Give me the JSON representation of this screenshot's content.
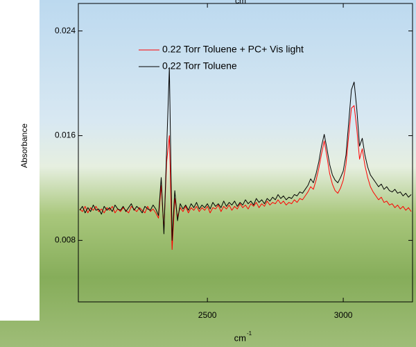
{
  "chart_data": {
    "type": "line",
    "top_axis_label": "cm",
    "x_label": "cm",
    "x_label_sup": "-1",
    "y_label": "Absorbance",
    "xlim": [
      2025,
      3255
    ],
    "xticks": [
      2500,
      3000
    ],
    "ylim": [
      0.0033,
      0.0261
    ],
    "yticks": [
      0.008,
      0.016,
      0.024
    ],
    "legend": "upper left",
    "x": [
      2030,
      2040,
      2050,
      2060,
      2070,
      2080,
      2090,
      2100,
      2110,
      2120,
      2130,
      2140,
      2150,
      2160,
      2170,
      2180,
      2190,
      2200,
      2210,
      2220,
      2230,
      2240,
      2250,
      2260,
      2270,
      2280,
      2290,
      2300,
      2310,
      2320,
      2330,
      2340,
      2350,
      2360,
      2370,
      2380,
      2390,
      2400,
      2410,
      2420,
      2430,
      2440,
      2450,
      2460,
      2470,
      2480,
      2490,
      2500,
      2510,
      2520,
      2530,
      2540,
      2550,
      2560,
      2570,
      2580,
      2590,
      2600,
      2610,
      2620,
      2630,
      2640,
      2650,
      2660,
      2670,
      2680,
      2690,
      2700,
      2710,
      2720,
      2730,
      2740,
      2750,
      2760,
      2770,
      2780,
      2790,
      2800,
      2810,
      2820,
      2830,
      2840,
      2850,
      2860,
      2870,
      2880,
      2890,
      2900,
      2910,
      2920,
      2930,
      2940,
      2950,
      2960,
      2970,
      2980,
      2990,
      3000,
      3010,
      3020,
      3030,
      3040,
      3050,
      3060,
      3070,
      3080,
      3090,
      3100,
      3110,
      3120,
      3130,
      3140,
      3150,
      3160,
      3170,
      3180,
      3190,
      3200,
      3210,
      3220,
      3230,
      3240,
      3250
    ],
    "series": [
      {
        "name": "0.22 Torr Toluene + PC+ Vis light",
        "color": "#ff0000",
        "values": [
          0.0104,
          0.0102,
          0.0106,
          0.0101,
          0.0105,
          0.0103,
          0.0106,
          0.0102,
          0.0104,
          0.0101,
          0.0105,
          0.0103,
          0.0106,
          0.0101,
          0.0104,
          0.0102,
          0.0105,
          0.0103,
          0.0101,
          0.0106,
          0.0104,
          0.0102,
          0.0105,
          0.0103,
          0.0101,
          0.0106,
          0.0102,
          0.0104,
          0.0101,
          0.0097,
          0.0122,
          0.0088,
          0.014,
          0.016,
          0.0073,
          0.0112,
          0.0098,
          0.0105,
          0.0102,
          0.0106,
          0.0101,
          0.0105,
          0.0103,
          0.0106,
          0.0102,
          0.0105,
          0.0103,
          0.0106,
          0.0101,
          0.0105,
          0.0104,
          0.0107,
          0.0102,
          0.0106,
          0.0104,
          0.0107,
          0.0103,
          0.0106,
          0.0104,
          0.0108,
          0.0105,
          0.0107,
          0.0104,
          0.0108,
          0.0106,
          0.0109,
          0.0105,
          0.0108,
          0.0106,
          0.011,
          0.0107,
          0.0109,
          0.0108,
          0.0111,
          0.0108,
          0.011,
          0.0107,
          0.0109,
          0.0108,
          0.0111,
          0.0109,
          0.0112,
          0.0111,
          0.0114,
          0.0117,
          0.0121,
          0.0119,
          0.0126,
          0.0135,
          0.0146,
          0.0156,
          0.0144,
          0.0131,
          0.0123,
          0.0118,
          0.0116,
          0.012,
          0.0126,
          0.0138,
          0.016,
          0.0181,
          0.0183,
          0.0165,
          0.0142,
          0.015,
          0.0137,
          0.0128,
          0.0121,
          0.0117,
          0.0114,
          0.0111,
          0.0113,
          0.0109,
          0.011,
          0.0107,
          0.0108,
          0.0105,
          0.0107,
          0.0104,
          0.0106,
          0.0103,
          0.0105,
          0.0102
        ]
      },
      {
        "name": "0.22 Torr Toluene",
        "color": "#000000",
        "values": [
          0.0103,
          0.0106,
          0.0101,
          0.0105,
          0.0102,
          0.0107,
          0.0103,
          0.0104,
          0.01,
          0.0106,
          0.0103,
          0.0105,
          0.0102,
          0.0107,
          0.0104,
          0.0103,
          0.0106,
          0.0102,
          0.0105,
          0.0108,
          0.0103,
          0.0106,
          0.0104,
          0.0101,
          0.0106,
          0.0104,
          0.0103,
          0.0107,
          0.0104,
          0.0099,
          0.0128,
          0.0085,
          0.015,
          0.0212,
          0.008,
          0.0118,
          0.0095,
          0.0108,
          0.0104,
          0.0107,
          0.0103,
          0.0108,
          0.0105,
          0.0109,
          0.0104,
          0.0107,
          0.0105,
          0.0108,
          0.0104,
          0.0109,
          0.0106,
          0.0108,
          0.0105,
          0.011,
          0.0106,
          0.0109,
          0.0107,
          0.011,
          0.0106,
          0.0109,
          0.0107,
          0.0111,
          0.0108,
          0.011,
          0.0107,
          0.0112,
          0.0109,
          0.0111,
          0.0108,
          0.0112,
          0.011,
          0.0113,
          0.0111,
          0.0115,
          0.0112,
          0.0114,
          0.0111,
          0.0113,
          0.0112,
          0.0115,
          0.0114,
          0.0117,
          0.0116,
          0.0119,
          0.0122,
          0.0127,
          0.0124,
          0.0131,
          0.014,
          0.0152,
          0.0161,
          0.015,
          0.0138,
          0.013,
          0.0126,
          0.0124,
          0.0128,
          0.0133,
          0.0145,
          0.017,
          0.0195,
          0.0201,
          0.018,
          0.0152,
          0.0158,
          0.0145,
          0.0136,
          0.013,
          0.0127,
          0.0124,
          0.0121,
          0.0123,
          0.0119,
          0.0121,
          0.0118,
          0.0117,
          0.0119,
          0.0116,
          0.0117,
          0.0114,
          0.0116,
          0.0113,
          0.0115
        ]
      }
    ]
  }
}
